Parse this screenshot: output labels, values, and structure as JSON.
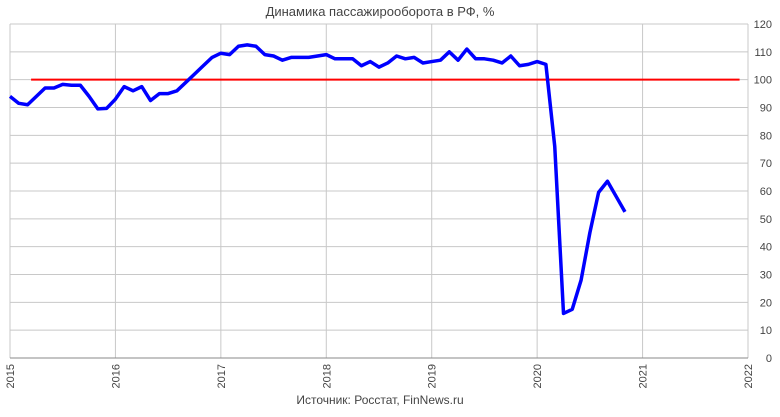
{
  "chart_data": {
    "type": "line",
    "title": "Динамика пассажирооборота в РФ, %",
    "source": "Источник: Росстат, FinNews.ru",
    "x": [
      2015.0,
      2015.083,
      2015.167,
      2015.25,
      2015.333,
      2015.417,
      2015.5,
      2015.583,
      2015.667,
      2015.75,
      2015.833,
      2015.917,
      2016.0,
      2016.083,
      2016.167,
      2016.25,
      2016.333,
      2016.417,
      2016.5,
      2016.583,
      2016.667,
      2016.75,
      2016.833,
      2016.917,
      2017.0,
      2017.083,
      2017.167,
      2017.25,
      2017.333,
      2017.417,
      2017.5,
      2017.583,
      2017.667,
      2017.75,
      2017.833,
      2017.917,
      2018.0,
      2018.083,
      2018.167,
      2018.25,
      2018.333,
      2018.417,
      2018.5,
      2018.583,
      2018.667,
      2018.75,
      2018.833,
      2018.917,
      2019.0,
      2019.083,
      2019.167,
      2019.25,
      2019.333,
      2019.417,
      2019.5,
      2019.583,
      2019.667,
      2019.75,
      2019.833,
      2019.917,
      2020.0,
      2020.083,
      2020.167,
      2020.25,
      2020.333,
      2020.417,
      2020.5,
      2020.583,
      2020.667,
      2020.75,
      2020.833
    ],
    "series": [
      {
        "color": "#0000ff",
        "values": [
          94,
          91.5,
          91,
          94,
          97,
          97,
          98.3,
          98,
          98,
          94,
          89.5,
          89.7,
          93,
          97.5,
          96,
          97.5,
          92.5,
          95,
          95,
          96,
          99,
          102,
          105,
          108,
          109.5,
          109,
          112,
          112.5,
          112,
          109,
          108.5,
          107,
          108,
          108,
          108,
          108.5,
          109,
          107.5,
          107.5,
          107.5,
          105,
          106.5,
          104.5,
          106,
          108.5,
          107.5,
          108,
          106,
          106.5,
          107,
          110,
          107,
          111,
          107.5,
          107.5,
          107,
          106,
          108.5,
          105,
          105.5,
          106.5,
          105.5,
          76,
          16,
          17.5,
          28,
          45,
          59.5,
          63.5,
          58,
          52.5
        ]
      }
    ],
    "reference_line": {
      "value": 100,
      "x": [
        2015.2,
        2021.92
      ],
      "color": "#ff0000"
    },
    "xlim": [
      2015,
      2022
    ],
    "xticks": [
      2015,
      2016,
      2017,
      2018,
      2019,
      2020,
      2021,
      2022
    ],
    "ylim": [
      0,
      120
    ],
    "yticks": [
      0,
      10,
      20,
      30,
      40,
      50,
      60,
      70,
      80,
      90,
      100,
      110,
      120
    ],
    "grid": true,
    "y_axis_side": "right"
  }
}
